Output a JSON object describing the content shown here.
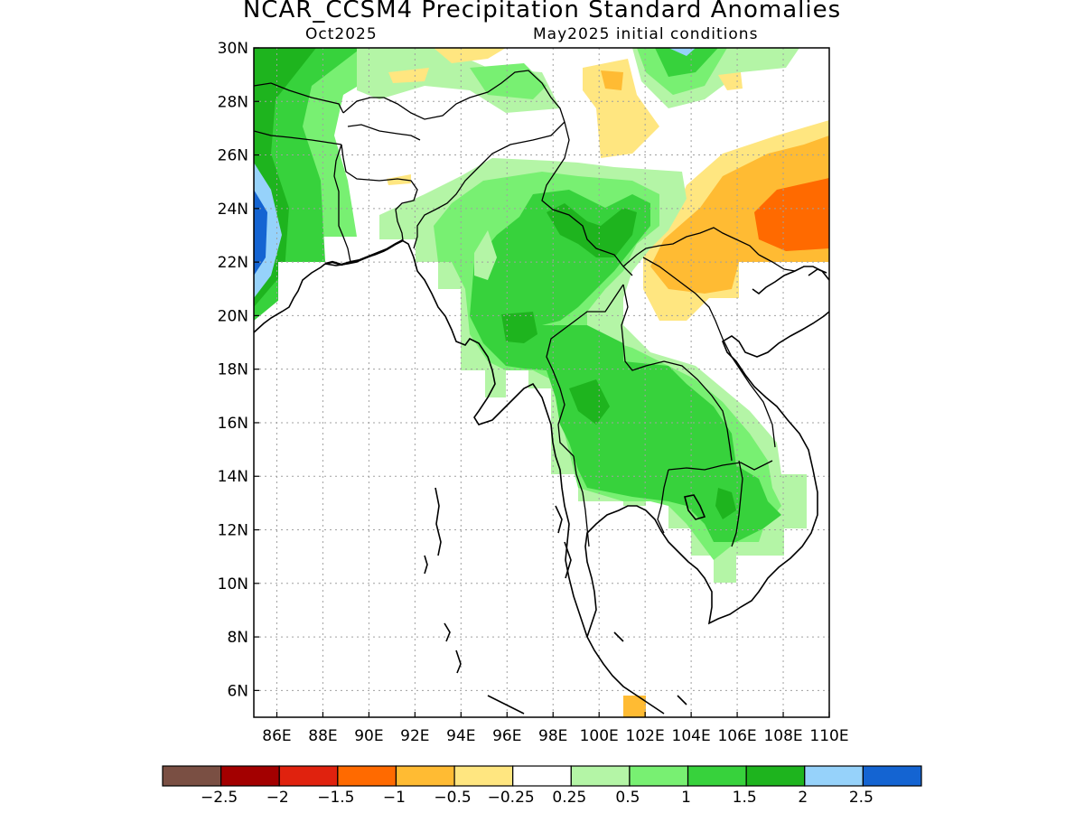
{
  "figure": {
    "title": "NCAR_CCSM4 Precipitation Standard Anomalies",
    "valid_month": "Oct2025",
    "init_label": "May2025 initial conditions"
  },
  "map": {
    "lon_range": [
      85,
      110
    ],
    "lat_range": [
      5,
      30
    ],
    "lon_ticks": [
      "86E",
      "88E",
      "90E",
      "92E",
      "94E",
      "96E",
      "98E",
      "100E",
      "102E",
      "104E",
      "106E",
      "108E",
      "110E"
    ],
    "lat_ticks": [
      "30N",
      "28N",
      "26N",
      "24N",
      "22N",
      "20N",
      "18N",
      "16N",
      "14N",
      "12N",
      "10N",
      "8N",
      "6N"
    ],
    "grid": "dotted"
  },
  "colorbar": {
    "colors": [
      "#7a4f43",
      "#a30000",
      "#e0220e",
      "#ff6a00",
      "#ffbb33",
      "#ffe680",
      "#ffffff",
      "#b4f5a6",
      "#78f072",
      "#37d23c",
      "#1eb41e",
      "#96d2fa",
      "#1464d2"
    ],
    "labels": [
      "−2.5",
      "−2",
      "−1.5",
      "−1",
      "−0.5",
      "−0.25",
      "0.25",
      "0.5",
      "1",
      "1.5",
      "2",
      "2.5"
    ]
  }
}
